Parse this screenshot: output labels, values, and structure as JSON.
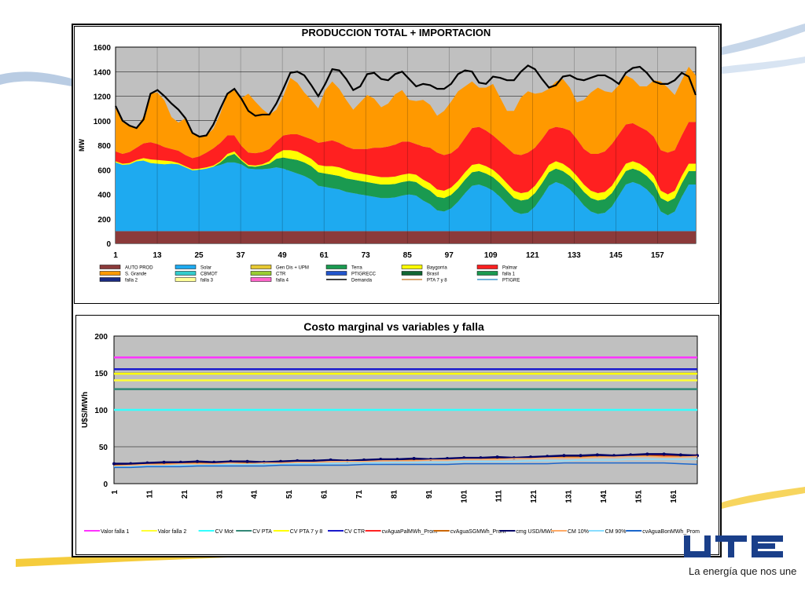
{
  "slide": {
    "slogan": "La energía que nos une",
    "logo_text": "UTE",
    "colors": {
      "swoosh_yellow": "#f3c31a",
      "swoosh_blue": "#9fb7d6"
    }
  },
  "chart_data": [
    {
      "type": "area",
      "title": "PRODUCCION TOTAL + IMPORTACION",
      "ylabel": "MW",
      "xlabel": "",
      "ylim": [
        0,
        1600
      ],
      "yticks": [
        "0",
        "200",
        "400",
        "600",
        "800",
        "1000",
        "1200",
        "1400",
        "1600"
      ],
      "xticks": [
        "1",
        "13",
        "25",
        "37",
        "49",
        "61",
        "73",
        "85",
        "97",
        "109",
        "121",
        "133",
        "145",
        "157"
      ],
      "grid": true,
      "legend_placement": "bottom",
      "legend": [
        {
          "name": "AUTO PROD",
          "color": "#8b3a3a"
        },
        {
          "name": "Solar",
          "color": "#1eaaf0"
        },
        {
          "name": "Gen Dis + UPM",
          "color": "#e6c832"
        },
        {
          "name": "Terra",
          "color": "#1a9a50"
        },
        {
          "name": "Baygorria",
          "color": "#ffff00"
        },
        {
          "name": "Palmar",
          "color": "#ff2020"
        },
        {
          "name": "S. Grande",
          "color": "#ff9900"
        },
        {
          "name": "CBMOT",
          "color": "#33cccc"
        },
        {
          "name": "CTR",
          "color": "#99cc33"
        },
        {
          "name": "PTIGRECC",
          "color": "#2255cc"
        },
        {
          "name": "Brasil",
          "color": "#116633"
        },
        {
          "name": "falla 1",
          "color": "#1a9a50"
        },
        {
          "name": "falla 2",
          "color": "#1a2a80"
        },
        {
          "name": "falla 3",
          "color": "#ffff99"
        },
        {
          "name": "falla 4",
          "color": "#ff66cc"
        },
        {
          "name": "Demanda",
          "color": "#000000"
        },
        {
          "name": "PTA 7 y 8",
          "color": "#cc8844"
        },
        {
          "name": "PTIGRE",
          "color": "#4499cc"
        }
      ],
      "series_stack": [
        {
          "name": "AUTO PROD",
          "color": "#8b3a3a",
          "values": [
            100,
            100,
            100,
            100,
            100,
            100,
            100,
            100,
            100,
            100,
            100,
            100,
            100,
            100,
            100,
            100,
            100,
            100,
            100,
            100,
            100,
            100,
            100,
            100,
            100,
            100,
            100,
            100,
            100,
            100,
            100,
            100,
            100,
            100,
            100,
            100,
            100,
            100,
            100,
            100,
            100,
            100,
            100,
            100,
            100,
            100,
            100,
            100,
            100,
            100,
            100,
            100,
            100,
            100,
            100,
            100,
            100,
            100,
            100,
            100,
            100,
            100,
            100,
            100,
            100,
            100,
            100,
            100,
            100,
            100,
            100,
            100,
            100,
            100,
            100,
            100,
            100,
            100,
            100,
            100,
            100,
            100,
            100,
            100
          ]
        },
        {
          "name": "Solar",
          "color": "#1eaaf0",
          "values": [
            560,
            540,
            545,
            570,
            575,
            555,
            550,
            545,
            550,
            545,
            520,
            495,
            500,
            510,
            525,
            540,
            560,
            560,
            545,
            510,
            505,
            505,
            510,
            520,
            510,
            490,
            470,
            450,
            420,
            370,
            360,
            350,
            340,
            320,
            310,
            300,
            290,
            280,
            270,
            270,
            275,
            290,
            300,
            290,
            250,
            220,
            170,
            160,
            185,
            240,
            310,
            370,
            380,
            360,
            330,
            280,
            220,
            160,
            140,
            150,
            200,
            280,
            370,
            400,
            380,
            340,
            280,
            210,
            160,
            140,
            150,
            200,
            290,
            380,
            400,
            380,
            340,
            280,
            160,
            130,
            160,
            280,
            380,
            380
          ]
        },
        {
          "name": "Terra",
          "color": "#1a9a50",
          "values": [
            0,
            0,
            0,
            0,
            0,
            0,
            0,
            0,
            0,
            0,
            0,
            0,
            0,
            0,
            0,
            20,
            50,
            70,
            30,
            20,
            20,
            30,
            40,
            70,
            90,
            100,
            110,
            110,
            110,
            110,
            110,
            110,
            110,
            110,
            110,
            110,
            110,
            110,
            110,
            110,
            110,
            110,
            110,
            110,
            110,
            110,
            110,
            110,
            110,
            110,
            110,
            110,
            110,
            110,
            110,
            110,
            110,
            110,
            110,
            110,
            110,
            110,
            110,
            110,
            110,
            110,
            110,
            110,
            110,
            110,
            110,
            110,
            110,
            110,
            110,
            110,
            110,
            110,
            110,
            110,
            110,
            110,
            110,
            110
          ]
        },
        {
          "name": "Baygorria",
          "color": "#ffff00",
          "values": [
            10,
            10,
            10,
            10,
            20,
            30,
            30,
            30,
            20,
            10,
            10,
            10,
            10,
            10,
            10,
            10,
            20,
            20,
            10,
            10,
            10,
            10,
            20,
            40,
            60,
            70,
            70,
            60,
            60,
            60,
            60,
            70,
            70,
            70,
            60,
            60,
            60,
            60,
            60,
            60,
            60,
            60,
            60,
            60,
            60,
            60,
            60,
            60,
            60,
            60,
            60,
            60,
            60,
            60,
            60,
            60,
            60,
            60,
            60,
            60,
            60,
            60,
            60,
            60,
            60,
            60,
            60,
            60,
            60,
            60,
            60,
            60,
            60,
            60,
            60,
            60,
            60,
            60,
            60,
            60,
            60,
            60,
            60,
            60
          ]
        },
        {
          "name": "Palmar",
          "color": "#ff2020",
          "values": [
            80,
            80,
            90,
            100,
            120,
            140,
            130,
            110,
            100,
            100,
            90,
            90,
            100,
            120,
            140,
            150,
            150,
            130,
            110,
            100,
            100,
            100,
            100,
            100,
            120,
            130,
            140,
            150,
            160,
            180,
            200,
            210,
            200,
            190,
            190,
            200,
            210,
            230,
            240,
            250,
            260,
            270,
            260,
            250,
            270,
            290,
            300,
            290,
            280,
            270,
            280,
            300,
            300,
            290,
            280,
            280,
            290,
            300,
            310,
            320,
            310,
            300,
            290,
            280,
            290,
            310,
            300,
            290,
            300,
            320,
            330,
            340,
            330,
            320,
            310,
            300,
            310,
            320,
            330,
            340,
            330,
            330,
            340,
            340
          ]
        },
        {
          "name": "S. Grande",
          "color": "#ff9900",
          "values": [
            370,
            260,
            210,
            160,
            220,
            400,
            420,
            380,
            260,
            230,
            300,
            200,
            160,
            140,
            160,
            240,
            340,
            370,
            390,
            480,
            420,
            350,
            280,
            260,
            320,
            460,
            420,
            360,
            320,
            280,
            420,
            480,
            440,
            380,
            320,
            380,
            440,
            400,
            330,
            350,
            410,
            420,
            340,
            350,
            380,
            350,
            300,
            360,
            420,
            460,
            420,
            380,
            320,
            350,
            420,
            360,
            300,
            350,
            470,
            500,
            440,
            380,
            330,
            370,
            400,
            350,
            300,
            400,
            500,
            540,
            490,
            420,
            400,
            400,
            360,
            330,
            360,
            460,
            560,
            530,
            450,
            450,
            450,
            380
          ]
        }
      ],
      "demanda": [
        1120,
        1000,
        960,
        940,
        1010,
        1220,
        1250,
        1200,
        1140,
        1090,
        1020,
        900,
        870,
        880,
        970,
        1100,
        1220,
        1260,
        1180,
        1080,
        1040,
        1050,
        1050,
        1140,
        1260,
        1390,
        1400,
        1370,
        1290,
        1200,
        1300,
        1420,
        1410,
        1340,
        1250,
        1280,
        1380,
        1390,
        1340,
        1330,
        1380,
        1400,
        1340,
        1280,
        1300,
        1290,
        1260,
        1260,
        1300,
        1380,
        1410,
        1400,
        1310,
        1300,
        1360,
        1350,
        1330,
        1330,
        1400,
        1450,
        1420,
        1340,
        1270,
        1290,
        1360,
        1370,
        1340,
        1330,
        1350,
        1370,
        1370,
        1340,
        1300,
        1390,
        1430,
        1440,
        1390,
        1320,
        1300,
        1300,
        1330,
        1390,
        1360,
        1210
      ]
    },
    {
      "type": "line",
      "title": "Costo marginal vs variables y falla",
      "ylabel": "U$S/MWh",
      "xlabel": "",
      "ylim": [
        0,
        200
      ],
      "yticks": [
        "0",
        "50",
        "100",
        "150",
        "200"
      ],
      "xticks": [
        "1",
        "11",
        "21",
        "31",
        "41",
        "51",
        "61",
        "71",
        "81",
        "91",
        "101",
        "111",
        "121",
        "131",
        "141",
        "151",
        "161"
      ],
      "grid": true,
      "legend_placement": "bottom",
      "series": [
        {
          "name": "Valor falla 1",
          "color": "#ff33ff",
          "constant": 171
        },
        {
          "name": "Valor falla 2",
          "color": "#ffff33",
          "constant": 140
        },
        {
          "name": "CV Mot",
          "color": "#33ffff",
          "constant": 100
        },
        {
          "name": "CV PTA",
          "color": "#338877",
          "constant": 128
        },
        {
          "name": "CV PTA 7 y 8",
          "color": "#ffff00",
          "constant": 149
        },
        {
          "name": "CV CTR",
          "color": "#1a1acc",
          "constant": 155
        },
        {
          "name": "cvAguaPalMWh_Prom",
          "color": "#ff2222",
          "values": [
            26,
            27,
            28,
            28,
            29,
            29,
            29,
            30,
            29,
            29,
            30,
            30,
            31,
            31,
            31,
            32,
            32,
            33,
            33,
            33,
            34,
            34,
            35,
            35,
            35,
            36,
            37,
            37,
            37,
            38,
            38,
            39,
            39,
            38,
            38,
            39
          ]
        },
        {
          "name": "cvAguaSGMWh_Prom",
          "color": "#cc6600",
          "values": [
            25,
            26,
            27,
            27,
            28,
            28,
            28,
            29,
            28,
            28,
            29,
            29,
            30,
            30,
            31,
            31,
            32,
            32,
            32,
            33,
            33,
            34,
            34,
            34,
            35,
            35,
            36,
            36,
            36,
            37,
            37,
            38,
            38,
            37,
            37,
            38
          ]
        },
        {
          "name": "cmg USD/MWh",
          "color": "#000066",
          "values": [
            27,
            27,
            28,
            29,
            29,
            30,
            29,
            30,
            30,
            29,
            30,
            31,
            31,
            32,
            31,
            32,
            33,
            33,
            34,
            33,
            34,
            35,
            35,
            36,
            35,
            36,
            37,
            38,
            38,
            39,
            38,
            39,
            40,
            40,
            39,
            38
          ]
        },
        {
          "name": "CM 10%",
          "color": "#ffaa66",
          "values": [
            24,
            25,
            26,
            26,
            27,
            27,
            27,
            28,
            27,
            28,
            28,
            29,
            29,
            30,
            30,
            30,
            31,
            31,
            31,
            32,
            32,
            33,
            33,
            33,
            34,
            34,
            35,
            35,
            35,
            36,
            36,
            37,
            37,
            36,
            36,
            37
          ]
        },
        {
          "name": "CM 90%",
          "color": "#88ddff",
          "values": [
            23,
            23,
            24,
            24,
            25,
            25,
            25,
            26,
            26,
            26,
            26,
            27,
            27,
            27,
            28,
            28,
            28,
            29,
            29,
            29,
            29,
            30,
            30,
            30,
            30,
            31,
            31,
            31,
            32,
            32,
            32,
            33,
            33,
            33,
            33,
            33
          ]
        },
        {
          "name": "cvAguaBonMWh_Prom",
          "color": "#1a66cc",
          "values": [
            22,
            22,
            23,
            23,
            23,
            24,
            24,
            24,
            24,
            24,
            25,
            25,
            25,
            25,
            25,
            26,
            26,
            26,
            26,
            26,
            26,
            27,
            27,
            27,
            27,
            27,
            27,
            28,
            28,
            28,
            28,
            28,
            28,
            28,
            27,
            26
          ]
        }
      ]
    }
  ]
}
